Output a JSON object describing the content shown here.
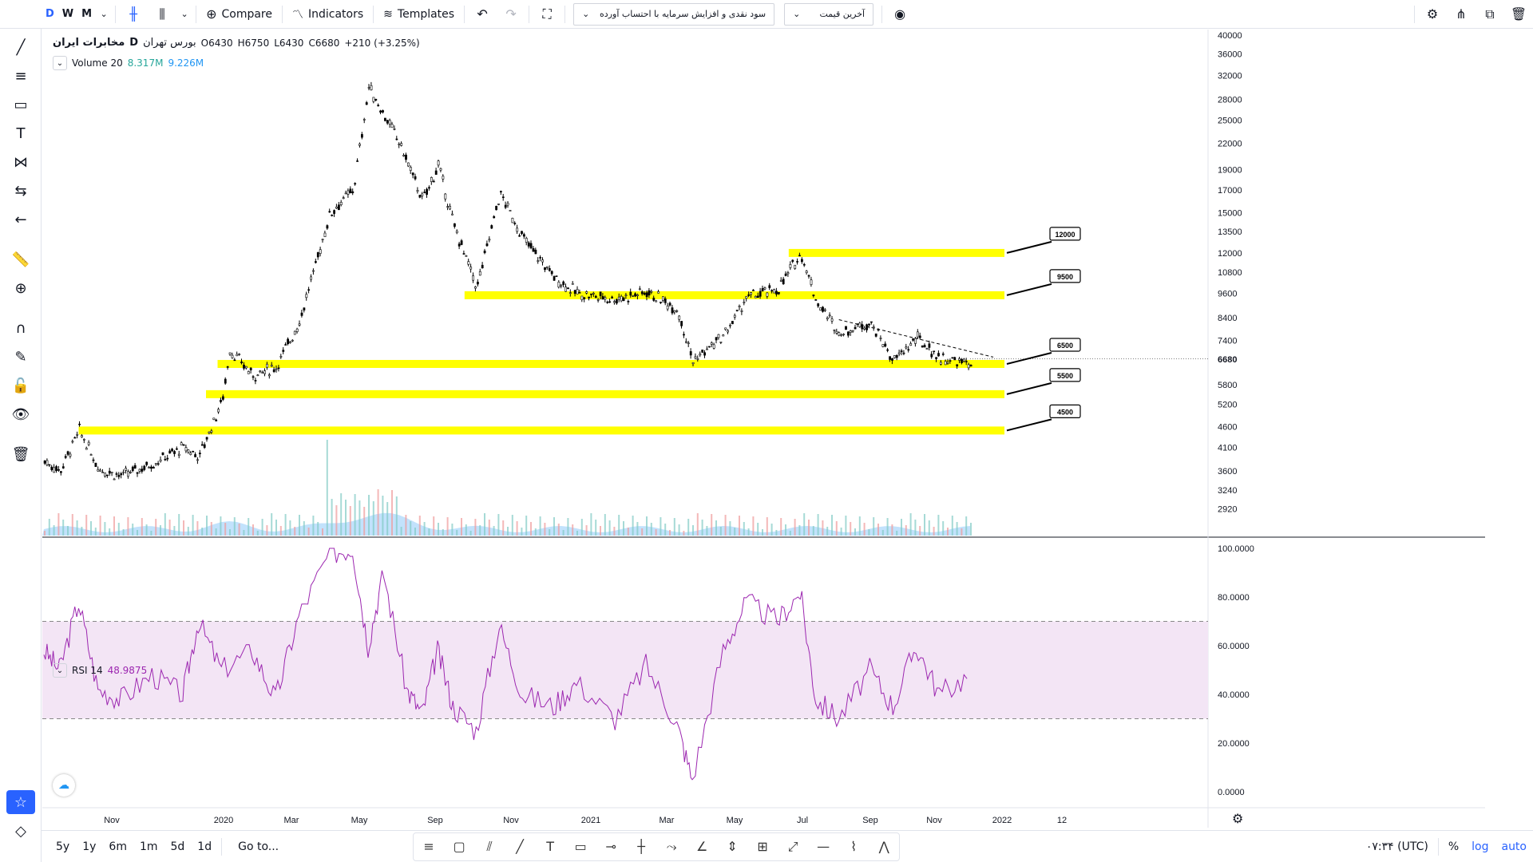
{
  "toolbar": {
    "timeframes": [
      "D",
      "W",
      "M"
    ],
    "compare_label": "Compare",
    "indicators_label": "Indicators",
    "templates_label": "Templates",
    "study_dropdown": "سود نقدی و افزایش سرمایه با احتساب آورده",
    "price_dropdown": "آخرین قیمت"
  },
  "legend": {
    "exchange": "بورس تهران",
    "interval": "D",
    "symbol": "مخابرات ایران",
    "open": "O6430",
    "high": "H6750",
    "low": "L6430",
    "close": "C6680",
    "change": "+210 (+3.25%)",
    "volume_label": "Volume 20",
    "volume_value1": "8.317M",
    "volume_value2": "9.226M",
    "rsi_label": "RSI 14",
    "rsi_value": "48.9875"
  },
  "bottom": {
    "ranges": [
      "5y",
      "1y",
      "6m",
      "1m",
      "5d",
      "1d"
    ],
    "goto_label": "Go to...",
    "time_label": "۰۷:۳۴ (UTC)",
    "percent_label": "%",
    "log_label": "log",
    "auto_label": "auto"
  },
  "colors": {
    "zone": "#ffff00",
    "candle_up": "#ffffff",
    "candle_down": "#000000",
    "rsi_line": "#9c27b0",
    "rsi_band": "#f3e5f5",
    "volume_up": "#ef9a9a",
    "volume_down": "#80cbc4",
    "volume_ma": "#90caf9",
    "accent": "#2962ff"
  },
  "chart_data": {
    "type": "candlestick",
    "price_axis_ticks": [
      40000,
      36000,
      32000,
      28000,
      25000,
      22000,
      19000,
      17000,
      15000,
      13500,
      12000,
      10800,
      9600,
      8400,
      7400,
      6680,
      5800,
      5200,
      4600,
      4100,
      3600,
      3240,
      2920
    ],
    "current_price": 6680,
    "log_scale": true,
    "x_tick_labels": [
      "Nov",
      "2020",
      "Mar",
      "May",
      "Sep",
      "Nov",
      "2021",
      "Mar",
      "May",
      "Jul",
      "Sep",
      "Nov",
      "2022",
      "12"
    ],
    "price_path": [
      [
        0,
        3800
      ],
      [
        20,
        3600
      ],
      [
        45,
        4500
      ],
      [
        70,
        3650
      ],
      [
        100,
        3500
      ],
      [
        140,
        3750
      ],
      [
        180,
        4100
      ],
      [
        200,
        3900
      ],
      [
        230,
        5300
      ],
      [
        240,
        7000
      ],
      [
        270,
        6100
      ],
      [
        300,
        6400
      ],
      [
        330,
        8200
      ],
      [
        370,
        15000
      ],
      [
        400,
        17000
      ],
      [
        420,
        30000
      ],
      [
        460,
        22000
      ],
      [
        490,
        16000
      ],
      [
        510,
        19500
      ],
      [
        530,
        14000
      ],
      [
        560,
        9900
      ],
      [
        590,
        16700
      ],
      [
        620,
        13000
      ],
      [
        660,
        10500
      ],
      [
        690,
        9600
      ],
      [
        740,
        9300
      ],
      [
        780,
        9700
      ],
      [
        820,
        8800
      ],
      [
        840,
        6600
      ],
      [
        880,
        7600
      ],
      [
        910,
        9400
      ],
      [
        950,
        9800
      ],
      [
        980,
        12000
      ],
      [
        1000,
        9200
      ],
      [
        1030,
        7700
      ],
      [
        1070,
        8200
      ],
      [
        1100,
        6600
      ],
      [
        1130,
        7500
      ],
      [
        1160,
        6700
      ],
      [
        1200,
        6500
      ]
    ],
    "horizontal_zones": [
      {
        "label": "12000",
        "value": 12000
      },
      {
        "label": "9500",
        "value": 9500
      },
      {
        "label": "6500",
        "value": 6500
      },
      {
        "label": "5500",
        "value": 5500
      },
      {
        "label": "4500",
        "value": 4500
      }
    ],
    "rsi": {
      "levels": [
        70,
        30
      ],
      "axis_ticks": [
        "100.0000",
        "80.0000",
        "60.0000",
        "40.0000",
        "20.0000",
        "0.0000"
      ],
      "path": [
        [
          0,
          58
        ],
        [
          20,
          50
        ],
        [
          45,
          78
        ],
        [
          70,
          42
        ],
        [
          100,
          38
        ],
        [
          140,
          48
        ],
        [
          180,
          40
        ],
        [
          200,
          70
        ],
        [
          230,
          50
        ],
        [
          270,
          58
        ],
        [
          300,
          38
        ],
        [
          330,
          72
        ],
        [
          370,
          98
        ],
        [
          400,
          100
        ],
        [
          420,
          60
        ],
        [
          440,
          90
        ],
        [
          470,
          42
        ],
        [
          490,
          32
        ],
        [
          510,
          58
        ],
        [
          530,
          35
        ],
        [
          560,
          25
        ],
        [
          590,
          68
        ],
        [
          620,
          40
        ],
        [
          660,
          35
        ],
        [
          690,
          45
        ],
        [
          740,
          30
        ],
        [
          780,
          52
        ],
        [
          820,
          28
        ],
        [
          840,
          5
        ],
        [
          880,
          58
        ],
        [
          910,
          78
        ],
        [
          950,
          70
        ],
        [
          980,
          82
        ],
        [
          1000,
          38
        ],
        [
          1030,
          30
        ],
        [
          1070,
          50
        ],
        [
          1100,
          35
        ],
        [
          1130,
          60
        ],
        [
          1160,
          40
        ],
        [
          1200,
          48
        ]
      ]
    },
    "volume_axis": "none"
  }
}
